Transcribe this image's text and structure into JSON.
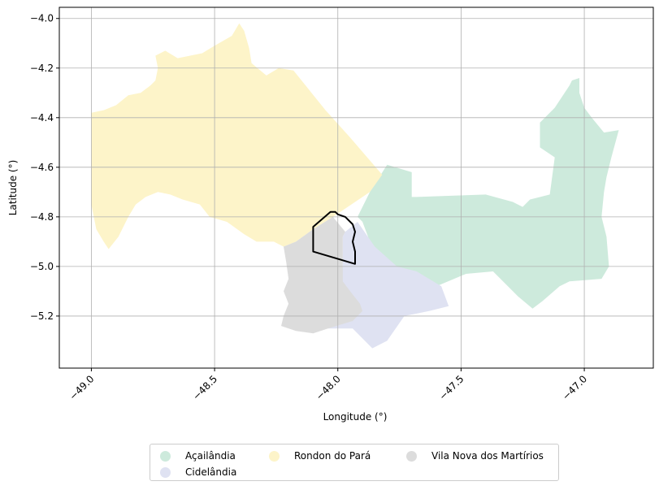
{
  "chart_data": {
    "type": "map",
    "xlabel": "Longitude (°)",
    "ylabel": "Latitude (°)",
    "xlim": [
      -49.13,
      -46.72
    ],
    "ylim": [
      -5.41,
      -3.955
    ],
    "x_ticks": [
      -49.0,
      -48.5,
      -48.0,
      -47.5,
      -47.0
    ],
    "x_tick_labels": [
      "−49.0",
      "−48.5",
      "−48.0",
      "−47.5",
      "−47.0"
    ],
    "y_ticks": [
      -4.0,
      -4.2,
      -4.4,
      -4.6,
      -4.8,
      -5.0,
      -5.2
    ],
    "y_tick_labels": [
      "−4.0",
      "−4.2",
      "−4.4",
      "−4.6",
      "−4.8",
      "−5.0",
      "−5.2"
    ],
    "grid": true,
    "legend_position": "bottom-center",
    "regions": [
      {
        "name": "Açailândia",
        "color": "#cdeadc",
        "polygon": [
          [
            -47.87,
            -4.7
          ],
          [
            -47.8,
            -4.59
          ],
          [
            -47.7,
            -4.62
          ],
          [
            -47.7,
            -4.72
          ],
          [
            -47.68,
            -4.72
          ],
          [
            -47.4,
            -4.71
          ],
          [
            -47.29,
            -4.74
          ],
          [
            -47.25,
            -4.76
          ],
          [
            -47.22,
            -4.73
          ],
          [
            -47.14,
            -4.71
          ],
          [
            -47.12,
            -4.56
          ],
          [
            -47.18,
            -4.52
          ],
          [
            -47.18,
            -4.42
          ],
          [
            -47.12,
            -4.36
          ],
          [
            -47.06,
            -4.27
          ],
          [
            -47.05,
            -4.25
          ],
          [
            -47.02,
            -4.24
          ],
          [
            -47.02,
            -4.3
          ],
          [
            -47.01,
            -4.33
          ],
          [
            -47.0,
            -4.36
          ],
          [
            -46.97,
            -4.4
          ],
          [
            -46.92,
            -4.46
          ],
          [
            -46.86,
            -4.45
          ],
          [
            -46.83,
            -4.39
          ],
          [
            -46.86,
            -4.45
          ],
          [
            -46.89,
            -4.56
          ],
          [
            -46.91,
            -4.64
          ],
          [
            -46.92,
            -4.7
          ],
          [
            -46.93,
            -4.8
          ],
          [
            -46.91,
            -4.88
          ],
          [
            -46.9,
            -5.0
          ],
          [
            -46.93,
            -5.05
          ],
          [
            -47.06,
            -5.06
          ],
          [
            -47.1,
            -5.08
          ],
          [
            -47.17,
            -5.14
          ],
          [
            -47.21,
            -5.17
          ],
          [
            -47.27,
            -5.12
          ],
          [
            -47.37,
            -5.02
          ],
          [
            -47.48,
            -5.03
          ],
          [
            -47.6,
            -5.08
          ],
          [
            -47.62,
            -5.1
          ],
          [
            -47.76,
            -5.05
          ],
          [
            -47.85,
            -4.98
          ],
          [
            -47.87,
            -4.9
          ],
          [
            -47.9,
            -4.82
          ],
          [
            -47.92,
            -4.8
          ]
        ]
      },
      {
        "name": "Cidelândia",
        "color": "#dfe2f2",
        "polygon": [
          [
            -47.92,
            -4.82
          ],
          [
            -47.97,
            -4.86
          ],
          [
            -47.98,
            -4.88
          ],
          [
            -47.98,
            -5.0
          ],
          [
            -48.05,
            -5.08
          ],
          [
            -48.11,
            -5.23
          ],
          [
            -48.04,
            -5.25
          ],
          [
            -47.94,
            -5.25
          ],
          [
            -47.86,
            -5.33
          ],
          [
            -47.8,
            -5.3
          ],
          [
            -47.73,
            -5.2
          ],
          [
            -47.63,
            -5.18
          ],
          [
            -47.55,
            -5.16
          ],
          [
            -47.58,
            -5.08
          ],
          [
            -47.68,
            -5.02
          ],
          [
            -47.76,
            -5.0
          ],
          [
            -47.85,
            -4.92
          ]
        ]
      },
      {
        "name": "Rondon do Pará",
        "color": "#fdf4c9",
        "polygon": [
          [
            -49.0,
            -4.38
          ],
          [
            -48.95,
            -4.37
          ],
          [
            -48.9,
            -4.35
          ],
          [
            -48.85,
            -4.31
          ],
          [
            -48.8,
            -4.3
          ],
          [
            -48.76,
            -4.27
          ],
          [
            -48.74,
            -4.25
          ],
          [
            -48.73,
            -4.2
          ],
          [
            -48.74,
            -4.15
          ],
          [
            -48.7,
            -4.13
          ],
          [
            -48.65,
            -4.16
          ],
          [
            -48.55,
            -4.14
          ],
          [
            -48.5,
            -4.11
          ],
          [
            -48.43,
            -4.07
          ],
          [
            -48.4,
            -4.02
          ],
          [
            -48.38,
            -4.05
          ],
          [
            -48.36,
            -4.12
          ],
          [
            -48.35,
            -4.18
          ],
          [
            -48.29,
            -4.23
          ],
          [
            -48.24,
            -4.2
          ],
          [
            -48.18,
            -4.21
          ],
          [
            -48.05,
            -4.37
          ],
          [
            -47.95,
            -4.48
          ],
          [
            -47.82,
            -4.63
          ],
          [
            -47.87,
            -4.7
          ],
          [
            -48.02,
            -4.8
          ],
          [
            -48.1,
            -4.85
          ],
          [
            -48.17,
            -4.9
          ],
          [
            -48.22,
            -4.92
          ],
          [
            -48.26,
            -4.9
          ],
          [
            -48.33,
            -4.9
          ],
          [
            -48.38,
            -4.87
          ],
          [
            -48.45,
            -4.82
          ],
          [
            -48.52,
            -4.8
          ],
          [
            -48.56,
            -4.75
          ],
          [
            -48.63,
            -4.73
          ],
          [
            -48.68,
            -4.71
          ],
          [
            -48.73,
            -4.7
          ],
          [
            -48.78,
            -4.72
          ],
          [
            -48.82,
            -4.75
          ],
          [
            -48.85,
            -4.8
          ],
          [
            -48.89,
            -4.88
          ],
          [
            -48.93,
            -4.93
          ],
          [
            -48.95,
            -4.9
          ],
          [
            -48.98,
            -4.85
          ],
          [
            -49.0,
            -4.75
          ],
          [
            -49.0,
            -4.55
          ]
        ]
      },
      {
        "name": "Vila Nova dos Martírios",
        "color": "#dcdcdc",
        "polygon": [
          [
            -48.02,
            -4.8
          ],
          [
            -48.1,
            -4.85
          ],
          [
            -48.17,
            -4.9
          ],
          [
            -48.22,
            -4.92
          ],
          [
            -48.21,
            -4.98
          ],
          [
            -48.2,
            -5.05
          ],
          [
            -48.22,
            -5.1
          ],
          [
            -48.2,
            -5.15
          ],
          [
            -48.22,
            -5.2
          ],
          [
            -48.23,
            -5.24
          ],
          [
            -48.17,
            -5.26
          ],
          [
            -48.1,
            -5.27
          ],
          [
            -48.04,
            -5.25
          ],
          [
            -47.94,
            -5.22
          ],
          [
            -47.9,
            -5.18
          ],
          [
            -47.91,
            -5.15
          ],
          [
            -47.95,
            -5.1
          ],
          [
            -47.98,
            -5.06
          ],
          [
            -47.98,
            -5.0
          ],
          [
            -47.98,
            -4.88
          ],
          [
            -47.97,
            -4.86
          ]
        ]
      }
    ],
    "outline": {
      "color": "#000000",
      "polygon": [
        [
          -48.1,
          -4.84
        ],
        [
          -48.03,
          -4.78
        ],
        [
          -48.01,
          -4.78
        ],
        [
          -48.0,
          -4.79
        ],
        [
          -47.97,
          -4.8
        ],
        [
          -47.94,
          -4.83
        ],
        [
          -47.93,
          -4.86
        ],
        [
          -47.94,
          -4.9
        ],
        [
          -47.93,
          -4.94
        ],
        [
          -47.93,
          -4.99
        ],
        [
          -48.1,
          -4.94
        ]
      ]
    }
  },
  "legend": {
    "items": [
      {
        "label": "Açailândia",
        "color": "#cdeadc"
      },
      {
        "label": "Cidelândia",
        "color": "#dfe2f2"
      },
      {
        "label": "Rondon do Pará",
        "color": "#fdf4c9"
      },
      {
        "label": "Vila Nova dos Martírios",
        "color": "#dcdcdc"
      }
    ]
  }
}
